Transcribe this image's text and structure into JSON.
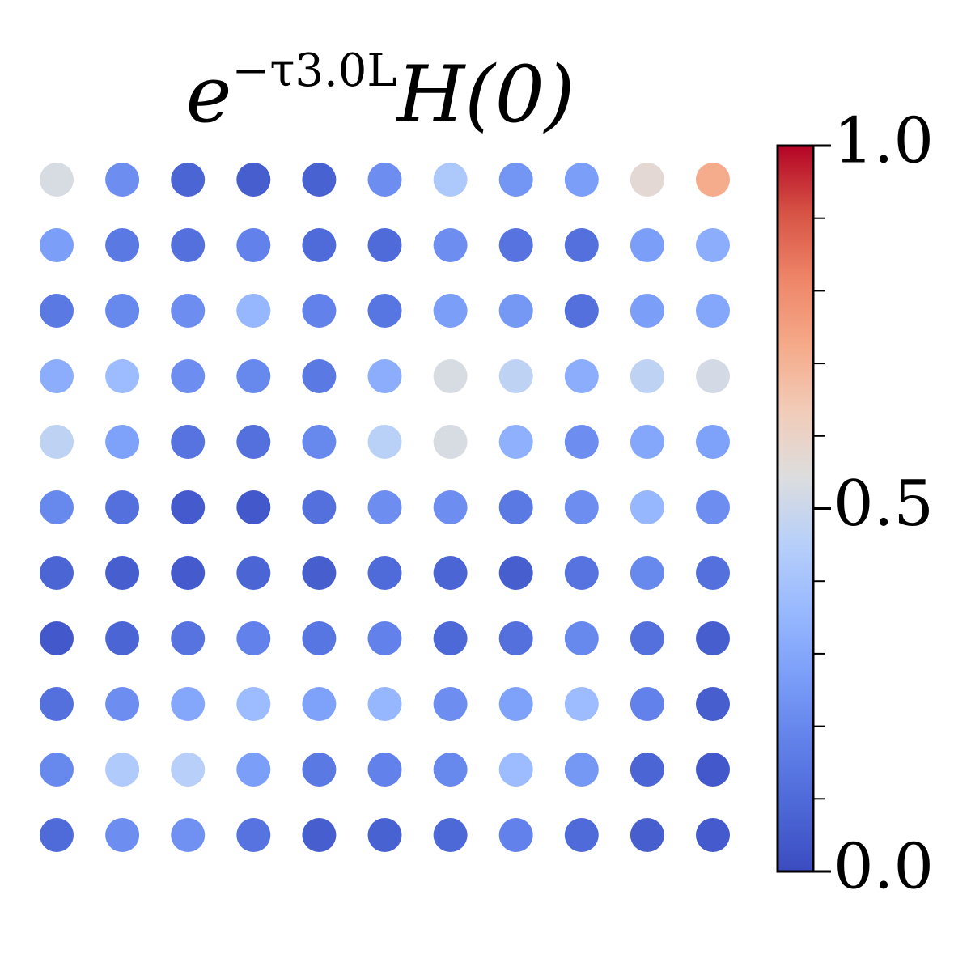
{
  "chart_data": {
    "type": "heatmap",
    "title": {
      "base": "e",
      "exponent": "−τ3.0L",
      "rest": "H(0)"
    },
    "colormap": "coolwarm",
    "clim": [
      0,
      1
    ],
    "cticks": [
      {
        "value": 0,
        "label": "0.0"
      },
      {
        "value": 0.5,
        "label": "0.5"
      },
      {
        "value": 1,
        "label": "1.0"
      }
    ],
    "cminor_ticks": [
      0.1,
      0.2,
      0.3,
      0.4,
      0.6,
      0.7,
      0.8,
      0.9
    ],
    "values": [
      [
        0.53,
        0.22,
        0.08,
        0.06,
        0.07,
        0.22,
        0.42,
        0.24,
        0.27,
        0.57,
        0.72
      ],
      [
        0.27,
        0.15,
        0.12,
        0.18,
        0.1,
        0.1,
        0.22,
        0.13,
        0.12,
        0.27,
        0.32
      ],
      [
        0.15,
        0.2,
        0.22,
        0.35,
        0.18,
        0.14,
        0.27,
        0.25,
        0.12,
        0.27,
        0.3
      ],
      [
        0.32,
        0.37,
        0.22,
        0.2,
        0.15,
        0.32,
        0.53,
        0.47,
        0.32,
        0.47,
        0.52
      ],
      [
        0.47,
        0.28,
        0.13,
        0.12,
        0.2,
        0.46,
        0.53,
        0.33,
        0.22,
        0.3,
        0.28
      ],
      [
        0.2,
        0.12,
        0.05,
        0.04,
        0.12,
        0.22,
        0.22,
        0.15,
        0.22,
        0.35,
        0.22
      ],
      [
        0.08,
        0.06,
        0.05,
        0.08,
        0.06,
        0.1,
        0.08,
        0.06,
        0.13,
        0.2,
        0.12
      ],
      [
        0.04,
        0.08,
        0.13,
        0.18,
        0.14,
        0.18,
        0.09,
        0.12,
        0.2,
        0.12,
        0.06
      ],
      [
        0.12,
        0.22,
        0.3,
        0.37,
        0.28,
        0.35,
        0.22,
        0.28,
        0.37,
        0.18,
        0.06
      ],
      [
        0.2,
        0.43,
        0.45,
        0.27,
        0.15,
        0.18,
        0.2,
        0.37,
        0.25,
        0.08,
        0.04
      ],
      [
        0.1,
        0.22,
        0.23,
        0.13,
        0.06,
        0.07,
        0.09,
        0.18,
        0.1,
        0.06,
        0.05
      ]
    ]
  }
}
